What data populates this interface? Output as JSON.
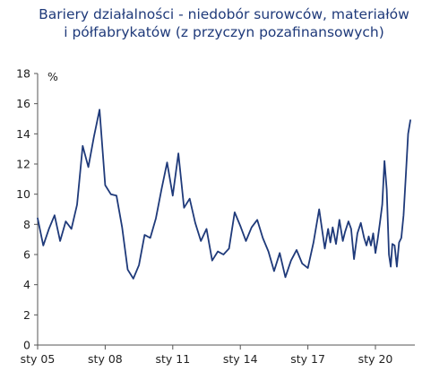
{
  "chart_data": {
    "type": "line",
    "title_line1": "Bariery działalności - niedobór surowców, materiałów",
    "title_line2": "i półfabrykatów (z przyczyn pozafinansowych)",
    "unit_label": "%",
    "xlabel": "",
    "ylabel": "",
    "ylim": [
      0,
      18
    ],
    "yticks": [
      0,
      2,
      4,
      6,
      8,
      10,
      12,
      14,
      16,
      18
    ],
    "xlim": [
      2005.0,
      2021.75
    ],
    "xticks": [
      {
        "label": "sty 05",
        "x": 2005.0
      },
      {
        "label": "sty 08",
        "x": 2008.0
      },
      {
        "label": "sty 11",
        "x": 2011.0
      },
      {
        "label": "sty 14",
        "x": 2014.0
      },
      {
        "label": "sty 17",
        "x": 2017.0
      },
      {
        "label": "sty 20",
        "x": 2020.0
      }
    ],
    "grid": false,
    "line_color": "#1f3a7a",
    "series": [
      {
        "name": "",
        "points": [
          [
            2005.0,
            8.4
          ],
          [
            2005.25,
            6.6
          ],
          [
            2005.5,
            7.7
          ],
          [
            2005.75,
            8.6
          ],
          [
            2006.0,
            6.9
          ],
          [
            2006.25,
            8.2
          ],
          [
            2006.5,
            7.7
          ],
          [
            2006.75,
            9.3
          ],
          [
            2007.0,
            13.2
          ],
          [
            2007.25,
            11.8
          ],
          [
            2007.5,
            13.8
          ],
          [
            2007.75,
            15.6
          ],
          [
            2008.0,
            10.6
          ],
          [
            2008.25,
            10.0
          ],
          [
            2008.5,
            9.9
          ],
          [
            2008.75,
            7.8
          ],
          [
            2009.0,
            5.0
          ],
          [
            2009.25,
            4.4
          ],
          [
            2009.5,
            5.3
          ],
          [
            2009.75,
            7.3
          ],
          [
            2010.0,
            7.1
          ],
          [
            2010.25,
            8.4
          ],
          [
            2010.5,
            10.3
          ],
          [
            2010.75,
            12.1
          ],
          [
            2011.0,
            9.9
          ],
          [
            2011.25,
            12.7
          ],
          [
            2011.5,
            9.1
          ],
          [
            2011.75,
            9.7
          ],
          [
            2012.0,
            8.1
          ],
          [
            2012.25,
            6.9
          ],
          [
            2012.5,
            7.7
          ],
          [
            2012.75,
            5.6
          ],
          [
            2013.0,
            6.2
          ],
          [
            2013.25,
            6.0
          ],
          [
            2013.5,
            6.4
          ],
          [
            2013.75,
            8.8
          ],
          [
            2014.0,
            7.9
          ],
          [
            2014.25,
            6.9
          ],
          [
            2014.5,
            7.8
          ],
          [
            2014.75,
            8.3
          ],
          [
            2015.0,
            7.1
          ],
          [
            2015.25,
            6.2
          ],
          [
            2015.5,
            4.9
          ],
          [
            2015.75,
            6.1
          ],
          [
            2016.0,
            4.5
          ],
          [
            2016.25,
            5.6
          ],
          [
            2016.5,
            6.3
          ],
          [
            2016.75,
            5.4
          ],
          [
            2017.0,
            5.1
          ],
          [
            2017.25,
            6.8
          ],
          [
            2017.5,
            9.0
          ],
          [
            2017.75,
            6.4
          ],
          [
            2017.9,
            7.7
          ],
          [
            2018.0,
            6.8
          ],
          [
            2018.1,
            7.8
          ],
          [
            2018.25,
            6.7
          ],
          [
            2018.4,
            8.3
          ],
          [
            2018.55,
            6.9
          ],
          [
            2018.65,
            7.5
          ],
          [
            2018.8,
            8.2
          ],
          [
            2018.92,
            7.7
          ],
          [
            2019.05,
            5.7
          ],
          [
            2019.2,
            7.4
          ],
          [
            2019.35,
            8.1
          ],
          [
            2019.5,
            7.1
          ],
          [
            2019.6,
            6.6
          ],
          [
            2019.7,
            7.2
          ],
          [
            2019.8,
            6.6
          ],
          [
            2019.9,
            7.4
          ],
          [
            2020.0,
            6.1
          ],
          [
            2020.1,
            7.0
          ],
          [
            2020.2,
            8.1
          ],
          [
            2020.3,
            9.3
          ],
          [
            2020.4,
            12.2
          ],
          [
            2020.5,
            10.3
          ],
          [
            2020.6,
            6.0
          ],
          [
            2020.68,
            5.2
          ],
          [
            2020.75,
            6.7
          ],
          [
            2020.85,
            6.6
          ],
          [
            2020.95,
            5.2
          ],
          [
            2021.05,
            6.8
          ],
          [
            2021.15,
            7.1
          ],
          [
            2021.25,
            8.6
          ],
          [
            2021.35,
            11.2
          ],
          [
            2021.45,
            14.0
          ],
          [
            2021.55,
            14.9
          ]
        ]
      }
    ]
  }
}
